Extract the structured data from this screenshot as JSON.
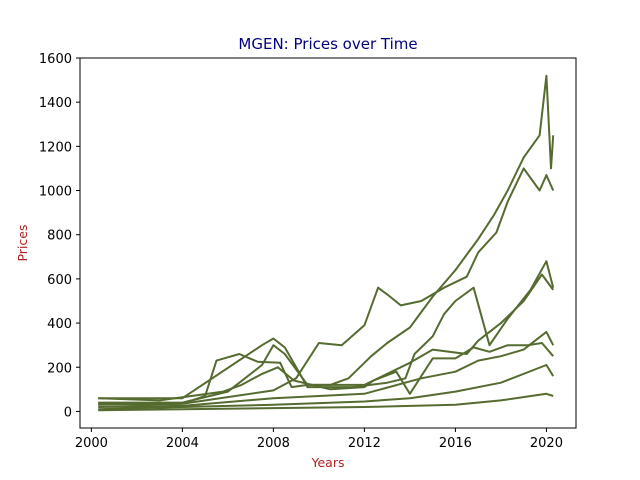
{
  "chart_data": {
    "type": "line",
    "title": "MGEN: Prices over Time",
    "xlabel": "Years",
    "ylabel": "Prices",
    "xlim": [
      1999.5,
      2021.3
    ],
    "ylim": [
      -75,
      1600
    ],
    "xticks": [
      2000,
      2004,
      2008,
      2012,
      2016,
      2020
    ],
    "yticks": [
      0,
      200,
      400,
      600,
      800,
      1000,
      1200,
      1400,
      1600
    ],
    "grid": false,
    "legend": "none",
    "colors": {
      "line": "#556b2f",
      "title": "#000080",
      "axis_label": "#b22222",
      "frame": "#000000"
    },
    "note_series_count": "many overlapping price series, all drawn in the same color",
    "series": [
      {
        "x": [
          2000.3,
          2002,
          2004,
          2005,
          2005.5,
          2006.5,
          2007.3,
          2008.3,
          2008.8,
          2009.5,
          2010.5,
          2011.3,
          2012.3,
          2013,
          2014,
          2015,
          2016,
          2017,
          2017.7,
          2018.3,
          2019,
          2019.7,
          2020,
          2020.2,
          2020.3
        ],
        "values": [
          35,
          30,
          35,
          70,
          230,
          260,
          225,
          220,
          110,
          120,
          120,
          150,
          250,
          310,
          380,
          520,
          640,
          780,
          890,
          1000,
          1150,
          1250,
          1520,
          1100,
          1250
        ]
      },
      {
        "x": [
          2000.3,
          2003,
          2005.8,
          2006.6,
          2007.5,
          2008.2,
          2008.9,
          2010.5,
          2012,
          2012.4,
          2013.4,
          2014,
          2015,
          2016,
          2016.8,
          2017.5,
          2018.3,
          2019.2,
          2019.8,
          2020.3
        ],
        "values": [
          60,
          50,
          90,
          120,
          170,
          200,
          140,
          100,
          110,
          140,
          180,
          80,
          240,
          240,
          290,
          270,
          300,
          300,
          310,
          250
        ]
      },
      {
        "x": [
          2000.3,
          2004,
          2008,
          2009,
          2010,
          2011,
          2012,
          2012.6,
          2013,
          2013.6,
          2014.5,
          2015.5,
          2016.5,
          2017,
          2017.8,
          2018.3,
          2019,
          2019.7,
          2020,
          2020.3
        ],
        "values": [
          30,
          35,
          95,
          150,
          310,
          300,
          390,
          560,
          530,
          480,
          500,
          560,
          610,
          720,
          810,
          950,
          1100,
          1000,
          1070,
          1000
        ]
      },
      {
        "x": [
          2000.3,
          2004,
          2007.5,
          2008,
          2008.5,
          2009.5,
          2011.5,
          2013,
          2013.8,
          2014.2,
          2015,
          2015.5,
          2016,
          2016.8,
          2017.5,
          2018.3,
          2019.3,
          2020,
          2020.3
        ],
        "values": [
          60,
          60,
          300,
          330,
          290,
          110,
          110,
          130,
          150,
          260,
          340,
          440,
          500,
          560,
          300,
          420,
          550,
          680,
          560
        ]
      },
      {
        "x": [
          2000.3,
          2004,
          2006,
          2007.5,
          2008,
          2008.5,
          2009.5,
          2012,
          2014,
          2015,
          2016.5,
          2017,
          2018,
          2019,
          2019.8,
          2020.3
        ],
        "values": [
          40,
          40,
          90,
          210,
          300,
          260,
          120,
          120,
          220,
          280,
          260,
          320,
          400,
          500,
          620,
          550
        ]
      },
      {
        "x": [
          2000.3,
          2004,
          2008,
          2012,
          2014.5,
          2016,
          2017,
          2018,
          2019,
          2020,
          2020.3
        ],
        "values": [
          20,
          25,
          60,
          80,
          150,
          180,
          230,
          250,
          280,
          360,
          300
        ]
      },
      {
        "x": [
          2000.3,
          2002,
          2004,
          2008,
          2012,
          2014,
          2016,
          2018,
          2020,
          2020.3
        ],
        "values": [
          10,
          15,
          20,
          30,
          45,
          60,
          90,
          130,
          210,
          160
        ]
      },
      {
        "x": [
          2000.3,
          2004,
          2008,
          2012,
          2016,
          2018,
          2020,
          2020.3
        ],
        "values": [
          5,
          10,
          15,
          20,
          30,
          50,
          80,
          70
        ]
      }
    ]
  }
}
